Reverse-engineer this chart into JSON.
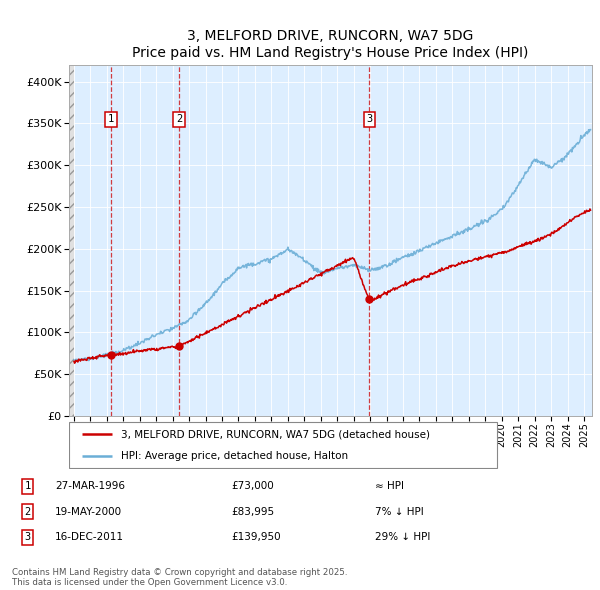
{
  "title": "3, MELFORD DRIVE, RUNCORN, WA7 5DG",
  "subtitle": "Price paid vs. HM Land Registry's House Price Index (HPI)",
  "sale_dates_decimal": [
    1996.24,
    2000.38,
    2011.96
  ],
  "sale_prices": [
    73000,
    83995,
    139950
  ],
  "sale_labels": [
    "1",
    "2",
    "3"
  ],
  "sale_notes": [
    "≈ HPI",
    "7% ↓ HPI",
    "29% ↓ HPI"
  ],
  "sale_note_dates": [
    "27-MAR-1996",
    "19-MAY-2000",
    "16-DEC-2011"
  ],
  "sale_price_labels": [
    "£73,000",
    "£83,995",
    "£139,950"
  ],
  "legend_property": "3, MELFORD DRIVE, RUNCORN, WA7 5DG (detached house)",
  "legend_hpi": "HPI: Average price, detached house, Halton",
  "footer": "Contains HM Land Registry data © Crown copyright and database right 2025.\nThis data is licensed under the Open Government Licence v3.0.",
  "hpi_color": "#6baed6",
  "property_color": "#cc0000",
  "dashed_line_color": "#cc0000",
  "background_plot": "#ddeeff",
  "ylim": [
    0,
    420000
  ],
  "yticks": [
    0,
    50000,
    100000,
    150000,
    200000,
    250000,
    300000,
    350000,
    400000
  ],
  "xlim_start": 1993.7,
  "xlim_end": 2025.5,
  "hpi_anchors_x": [
    1994.0,
    1995.0,
    1996.0,
    1997.0,
    1998.0,
    1999.0,
    2000.0,
    2001.0,
    2002.0,
    2003.0,
    2004.0,
    2005.0,
    2006.0,
    2007.0,
    2008.0,
    2009.0,
    2010.0,
    2011.0,
    2012.0,
    2013.0,
    2014.0,
    2015.0,
    2016.0,
    2017.0,
    2018.0,
    2019.0,
    2020.0,
    2021.0,
    2022.0,
    2023.0,
    2024.0,
    2025.3
  ],
  "hpi_anchors_y": [
    67000,
    69000,
    73000,
    79000,
    87000,
    97000,
    105000,
    115000,
    135000,
    158000,
    178000,
    183000,
    188000,
    200000,
    188000,
    172000,
    178000,
    182000,
    176000,
    182000,
    192000,
    200000,
    210000,
    218000,
    225000,
    235000,
    248000,
    278000,
    310000,
    300000,
    315000,
    345000
  ],
  "prop_anchors_x": [
    1994.0,
    1996.24,
    2000.38,
    2011.0,
    2011.96,
    2012.5,
    2013.5,
    2014.5,
    2015.5,
    2016.5,
    2017.5,
    2018.5,
    2019.5,
    2020.5,
    2021.5,
    2022.5,
    2023.5,
    2024.5,
    2025.3
  ],
  "prop_anchors_y": [
    65000,
    73000,
    83995,
    192000,
    139950,
    145000,
    155000,
    163000,
    170000,
    178000,
    185000,
    190000,
    195000,
    200000,
    208000,
    215000,
    225000,
    240000,
    248000
  ]
}
